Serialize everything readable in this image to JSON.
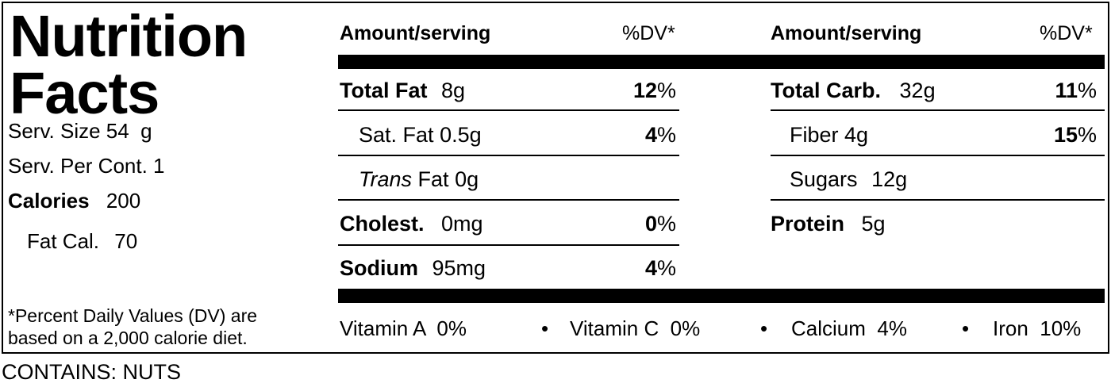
{
  "title_line1": "Nutrition",
  "title_line2": "Facts",
  "serving": {
    "size_label": "Serv. Size",
    "size_value": "54  g",
    "per_cont_label": "Serv. Per Cont.",
    "per_cont_value": "1",
    "calories_label": "Calories",
    "calories_value": "200",
    "fat_cal_label": "Fat Cal.",
    "fat_cal_value": "70"
  },
  "header": {
    "amount_left": "Amount/serving",
    "dv_left": "%DV*",
    "amount_right": "Amount/serving",
    "dv_right": "%DV*"
  },
  "left_rows": {
    "total_fat": {
      "label": "Total Fat",
      "amount": "8g",
      "dv": "12",
      "pct": "%"
    },
    "sat_fat": {
      "label": "Sat. Fat",
      "amount": "0.5g",
      "dv": "4",
      "pct": "%"
    },
    "trans_fat": {
      "label": "Trans",
      "label2": "Fat",
      "amount": "0g"
    },
    "cholest": {
      "label": "Cholest.",
      "amount": "0mg",
      "dv": "0",
      "pct": "%"
    },
    "sodium": {
      "label": "Sodium",
      "amount": "95mg",
      "dv": "4",
      "pct": "%"
    }
  },
  "right_rows": {
    "total_carb": {
      "label": "Total Carb.",
      "amount": "32g",
      "dv": "11",
      "pct": "%"
    },
    "fiber": {
      "label": "Fiber",
      "amount": "4g",
      "dv": "15",
      "pct": "%"
    },
    "sugars": {
      "label": "Sugars",
      "amount": "12g"
    },
    "protein": {
      "label": "Protein",
      "amount": "5g"
    }
  },
  "vitamins": {
    "vit_a": "Vitamin A  0%",
    "vit_c": "Vitamin C  0%",
    "calcium": "Calcium  4%",
    "iron": "Iron  10%",
    "bullet": "•"
  },
  "footnote_line1": "*Percent Daily Values (DV) are",
  "footnote_line2": "based on a 2,000 calorie diet.",
  "contains": "CONTAINS: NUTS"
}
